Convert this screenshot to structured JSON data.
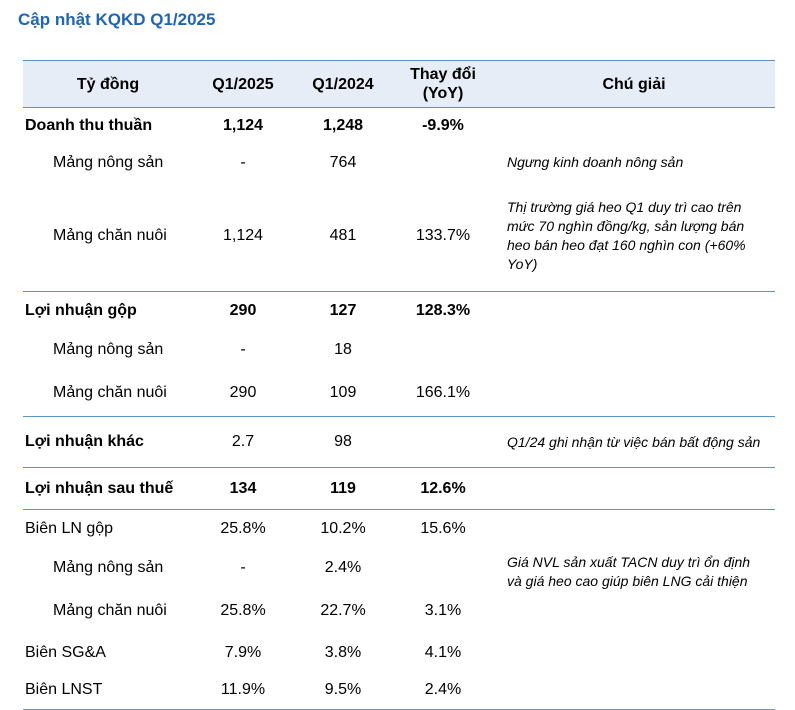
{
  "title": "Cập nhật KQKD Q1/2025",
  "header": {
    "col_label": "Tỷ đồng",
    "col_q1_2025": "Q1/2025",
    "col_q1_2024": "Q1/2024",
    "col_change_line1": "Thay đổi",
    "col_change_line2": "(YoY)",
    "col_note": "Chú giải"
  },
  "rows": [
    {
      "label": "Doanh thu thuần",
      "q1_2025": "1,124",
      "q1_2024": "1,248",
      "change": "-9.9%",
      "note": ""
    },
    {
      "label": "Mảng nông sản",
      "q1_2025": "-",
      "q1_2024": "764",
      "change": "",
      "note": "Ngưng kinh doanh nông sản"
    },
    {
      "label": "Mảng chăn nuôi",
      "q1_2025": "1,124",
      "q1_2024": "481",
      "change": "133.7%",
      "note": "Thị trường giá heo Q1 duy trì cao trên mức 70 nghìn đồng/kg, sản lượng bán heo bán heo đạt 160 nghìn con (+60% YoY)"
    },
    {
      "label": "Lợi nhuận gộp",
      "q1_2025": "290",
      "q1_2024": "127",
      "change": "128.3%",
      "note": ""
    },
    {
      "label": "Mảng nông sản",
      "q1_2025": "-",
      "q1_2024": "18",
      "change": "",
      "note": ""
    },
    {
      "label": "Mảng chăn nuôi",
      "q1_2025": "290",
      "q1_2024": "109",
      "change": "166.1%",
      "note": ""
    },
    {
      "label": "Lợi nhuận khác",
      "q1_2025": "2.7",
      "q1_2024": "98",
      "change": "",
      "note": "Q1/24 ghi nhận từ việc bán bất động sản"
    },
    {
      "label": "Lợi nhuận sau thuế",
      "q1_2025": "134",
      "q1_2024": "119",
      "change": "12.6%",
      "note": ""
    },
    {
      "label": "Biên LN gộp",
      "q1_2025": "25.8%",
      "q1_2024": "10.2%",
      "change": "15.6%",
      "note": ""
    },
    {
      "label": "Mảng nông sản",
      "q1_2025": "-",
      "q1_2024": "2.4%",
      "change": "",
      "note": ""
    },
    {
      "label": "Mảng chăn nuôi",
      "q1_2025": "25.8%",
      "q1_2024": "22.7%",
      "change": "3.1%",
      "note": "Giá NVL sản xuất TACN duy trì ổn định và giá heo cao giúp biên LNG cải thiện"
    },
    {
      "label": "Biên SG&A",
      "q1_2025": "7.9%",
      "q1_2024": "3.8%",
      "change": "4.1%",
      "note": ""
    },
    {
      "label": "Biên LNST",
      "q1_2025": "11.9%",
      "q1_2024": "9.5%",
      "change": "2.4%",
      "note": ""
    }
  ],
  "colors": {
    "title": "#1f66b0",
    "header_bg": "#e7edf6",
    "rule": "#5c93c8"
  }
}
